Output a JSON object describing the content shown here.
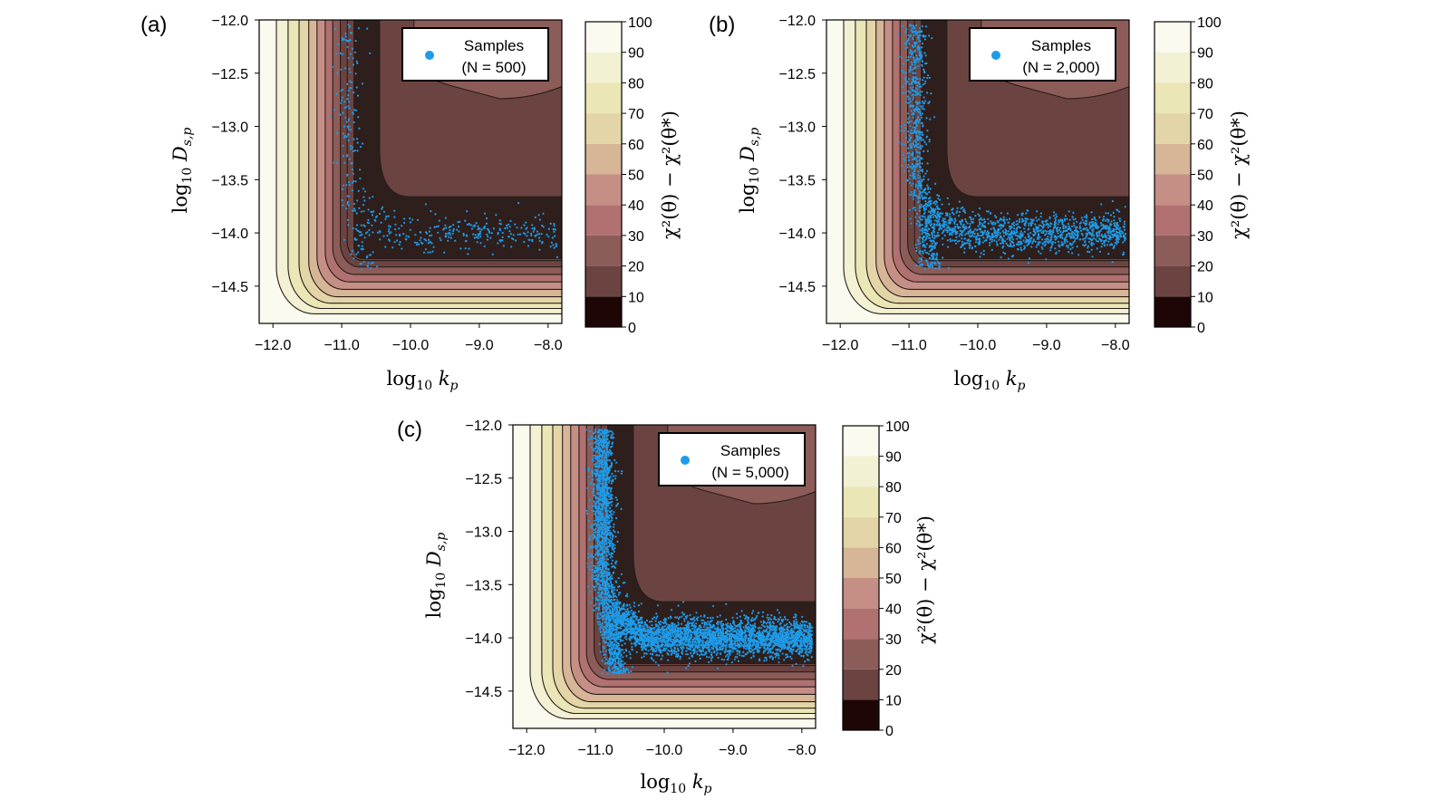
{
  "chart_data": [
    {
      "panel": "(a)",
      "type": "heatmap",
      "subtype": "filled-contour with scatter overlay",
      "title": "",
      "xlabel_base": "log",
      "xlabel_sub": "10",
      "xlabel_var": "k",
      "xlabel_varsub": "p",
      "ylabel_base": "log",
      "ylabel_sub": "10",
      "ylabel_var": "D",
      "ylabel_varsub": "s,p",
      "xlim": [
        -12.2,
        -7.8
      ],
      "ylim": [
        -14.85,
        -12.0
      ],
      "xticks": [
        -12.0,
        -11.0,
        -10.0,
        -9.0,
        -8.0
      ],
      "xtick_labels": [
        "−12.0",
        "−11.0",
        "−10.0",
        "−9.0",
        "−8.0"
      ],
      "yticks": [
        -12.0,
        -12.5,
        -13.0,
        -13.5,
        -14.0,
        -14.5
      ],
      "ytick_labels": [
        "−12.0",
        "−12.5",
        "−13.0",
        "−13.5",
        "−14.0",
        "−14.5"
      ],
      "colorbar_label": "χ²(θ) − χ²(θ*)",
      "colorbar_levels": [
        0,
        10,
        20,
        30,
        40,
        50,
        60,
        70,
        80,
        90,
        100
      ],
      "colorbar_tick_labels": [
        "0",
        "10",
        "20",
        "30",
        "40",
        "50",
        "60",
        "70",
        "80",
        "90",
        "100"
      ],
      "legend_title": "Samples",
      "legend_count": "(N = 500)",
      "legend_position": "top-right",
      "n_samples": 500,
      "marker_color": "#1E9BE8"
    },
    {
      "panel": "(b)",
      "type": "heatmap",
      "subtype": "filled-contour with scatter overlay",
      "title": "",
      "xlabel_base": "log",
      "xlabel_sub": "10",
      "xlabel_var": "k",
      "xlabel_varsub": "p",
      "ylabel_base": "log",
      "ylabel_sub": "10",
      "ylabel_var": "D",
      "ylabel_varsub": "s,p",
      "xlim": [
        -12.2,
        -7.8
      ],
      "ylim": [
        -14.85,
        -12.0
      ],
      "xticks": [
        -12.0,
        -11.0,
        -10.0,
        -9.0,
        -8.0
      ],
      "xtick_labels": [
        "−12.0",
        "−11.0",
        "−10.0",
        "−9.0",
        "−8.0"
      ],
      "yticks": [
        -12.0,
        -12.5,
        -13.0,
        -13.5,
        -14.0,
        -14.5
      ],
      "ytick_labels": [
        "−12.0",
        "−12.5",
        "−13.0",
        "−13.5",
        "−14.0",
        "−14.5"
      ],
      "colorbar_label": "χ²(θ) − χ²(θ*)",
      "colorbar_levels": [
        0,
        10,
        20,
        30,
        40,
        50,
        60,
        70,
        80,
        90,
        100
      ],
      "colorbar_tick_labels": [
        "0",
        "10",
        "20",
        "30",
        "40",
        "50",
        "60",
        "70",
        "80",
        "90",
        "100"
      ],
      "legend_title": "Samples",
      "legend_count": "(N = 2,000)",
      "legend_position": "top-right",
      "n_samples": 2000,
      "marker_color": "#1E9BE8"
    },
    {
      "panel": "(c)",
      "type": "heatmap",
      "subtype": "filled-contour with scatter overlay",
      "title": "",
      "xlabel_base": "log",
      "xlabel_sub": "10",
      "xlabel_var": "k",
      "xlabel_varsub": "p",
      "ylabel_base": "log",
      "ylabel_sub": "10",
      "ylabel_var": "D",
      "ylabel_varsub": "s,p",
      "xlim": [
        -12.2,
        -7.8
      ],
      "ylim": [
        -14.85,
        -12.0
      ],
      "xticks": [
        -12.0,
        -11.0,
        -10.0,
        -9.0,
        -8.0
      ],
      "xtick_labels": [
        "−12.0",
        "−11.0",
        "−10.0",
        "−9.0",
        "−8.0"
      ],
      "yticks": [
        -12.0,
        -12.5,
        -13.0,
        -13.5,
        -14.0,
        -14.5
      ],
      "ytick_labels": [
        "−12.0",
        "−12.5",
        "−13.0",
        "−13.5",
        "−14.0",
        "−14.5"
      ],
      "colorbar_label": "χ²(θ) − χ²(θ*)",
      "colorbar_levels": [
        0,
        10,
        20,
        30,
        40,
        50,
        60,
        70,
        80,
        90,
        100
      ],
      "colorbar_tick_labels": [
        "0",
        "10",
        "20",
        "30",
        "40",
        "50",
        "60",
        "70",
        "80",
        "90",
        "100"
      ],
      "legend_title": "Samples",
      "legend_count": "(N = 5,000)",
      "legend_position": "top-right",
      "n_samples": 5000,
      "marker_color": "#1E9BE8"
    }
  ],
  "colormap": [
    "#1E0606",
    "#6B4441",
    "#8C5C59",
    "#B07170",
    "#C58F86",
    "#D6B697",
    "#E3D5A7",
    "#EAE6B5",
    "#F2F1D3",
    "#FBFAEF"
  ],
  "contour_line_color": "#2a1c1a"
}
